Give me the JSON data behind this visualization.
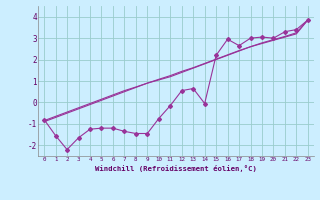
{
  "xlabel": "Windchill (Refroidissement éolien,°C)",
  "bg_color": "#cceeff",
  "grid_color": "#99cccc",
  "line_color": "#993399",
  "x_data": [
    0,
    1,
    2,
    3,
    4,
    5,
    6,
    7,
    8,
    9,
    10,
    11,
    12,
    13,
    14,
    15,
    16,
    17,
    18,
    19,
    20,
    21,
    22,
    23
  ],
  "y_scatter": [
    -0.8,
    -1.55,
    -2.2,
    -1.65,
    -1.25,
    -1.2,
    -1.2,
    -1.35,
    -1.45,
    -1.45,
    -0.75,
    -0.15,
    0.55,
    0.65,
    -0.05,
    2.2,
    2.95,
    2.65,
    3.0,
    3.05,
    3.0,
    3.3,
    3.4,
    3.85
  ],
  "y_reg1": [
    -0.9,
    -0.7,
    -0.5,
    -0.3,
    -0.1,
    0.1,
    0.3,
    0.5,
    0.7,
    0.9,
    1.05,
    1.2,
    1.4,
    1.6,
    1.8,
    2.0,
    2.2,
    2.4,
    2.6,
    2.75,
    2.9,
    3.05,
    3.2,
    3.85
  ],
  "y_reg2": [
    -0.85,
    -0.65,
    -0.45,
    -0.25,
    -0.05,
    0.15,
    0.35,
    0.55,
    0.72,
    0.9,
    1.08,
    1.25,
    1.45,
    1.62,
    1.82,
    2.02,
    2.22,
    2.42,
    2.6,
    2.78,
    2.93,
    3.08,
    3.25,
    3.85
  ],
  "ylim": [
    -2.5,
    4.5
  ],
  "xlim": [
    -0.5,
    23.5
  ],
  "yticks": [
    -2,
    -1,
    0,
    1,
    2,
    3,
    4
  ],
  "xticks": [
    0,
    1,
    2,
    3,
    4,
    5,
    6,
    7,
    8,
    9,
    10,
    11,
    12,
    13,
    14,
    15,
    16,
    17,
    18,
    19,
    20,
    21,
    22,
    23
  ],
  "markersize": 2.0,
  "linewidth": 0.8
}
